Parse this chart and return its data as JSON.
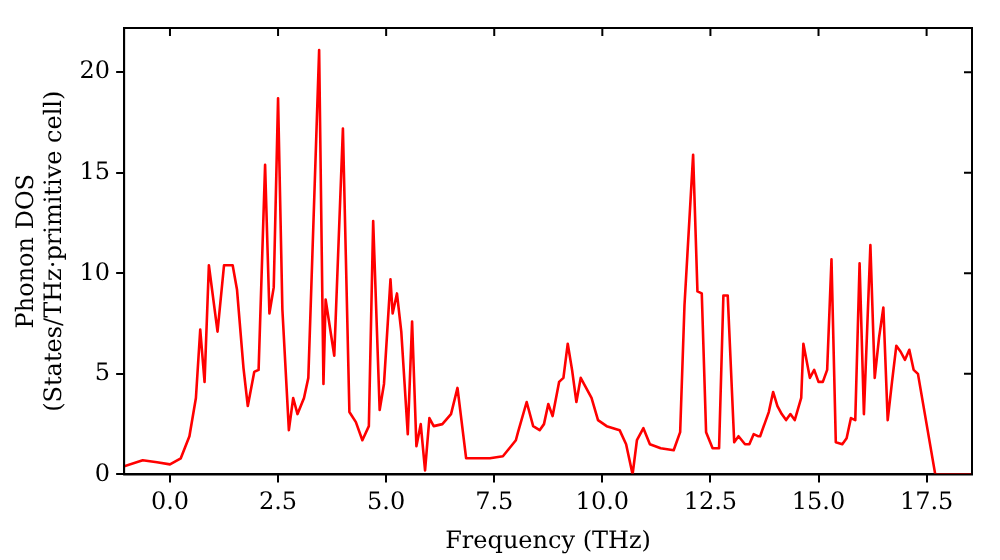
{
  "chart_data": {
    "type": "line",
    "xlabel": "Frequency (THz)",
    "ylabel": "Phonon DOS\n(States/THz·primitive cell)",
    "xlim": [
      -1.06,
      18.55
    ],
    "ylim": [
      0,
      22.2
    ],
    "xticks": [
      {
        "value": 0,
        "label": "0.0"
      },
      {
        "value": 2.5,
        "label": "2.5"
      },
      {
        "value": 5,
        "label": "5.0"
      },
      {
        "value": 7.5,
        "label": "7.5"
      },
      {
        "value": 10,
        "label": "10.0"
      },
      {
        "value": 12.5,
        "label": "12.5"
      },
      {
        "value": 15,
        "label": "15.0"
      },
      {
        "value": 17.5,
        "label": "17.5"
      }
    ],
    "yticks": [
      0,
      5,
      10,
      15,
      20
    ],
    "grid": false,
    "legend": false,
    "marker": "none",
    "line_style": "solid",
    "series": [
      {
        "color": "#ff0000",
        "x": [
          -1.06,
          -0.63,
          -0.3,
          0,
          0.25,
          0.45,
          0.6,
          0.7,
          0.8,
          0.9,
          1.1,
          1.25,
          1.45,
          1.55,
          1.7,
          1.8,
          1.95,
          2.05,
          2.2,
          2.3,
          2.4,
          2.5,
          2.6,
          2.75,
          2.85,
          2.95,
          3.1,
          3.2,
          3.45,
          3.55,
          3.6,
          3.8,
          4.0,
          4.15,
          4.3,
          4.45,
          4.6,
          4.7,
          4.85,
          4.95,
          5.1,
          5.15,
          5.25,
          5.35,
          5.5,
          5.6,
          5.7,
          5.8,
          5.9,
          6.0,
          6.1,
          6.3,
          6.5,
          6.65,
          6.85,
          7.4,
          7.7,
          8.0,
          8.05,
          8.25,
          8.4,
          8.55,
          8.65,
          8.75,
          8.85,
          9.0,
          9.1,
          9.2,
          9.3,
          9.4,
          9.5,
          9.6,
          9.75,
          9.9,
          10.1,
          10.4,
          10.55,
          10.7,
          10.8,
          10.95,
          11.1,
          11.35,
          11.65,
          11.8,
          11.9,
          12.1,
          12.2,
          12.3,
          12.4,
          12.55,
          12.7,
          12.8,
          12.9,
          13.05,
          13.15,
          13.3,
          13.4,
          13.5,
          13.6,
          13.65,
          13.85,
          13.95,
          14.05,
          14.15,
          14.25,
          14.35,
          14.45,
          14.6,
          14.65,
          14.8,
          14.9,
          15.0,
          15.1,
          15.2,
          15.3,
          15.4,
          15.55,
          15.65,
          15.75,
          15.85,
          15.95,
          16.05,
          16.2,
          16.3,
          16.4,
          16.5,
          16.6,
          16.7,
          16.8,
          16.9,
          17.0,
          17.1,
          17.2,
          17.3,
          17.7,
          18.55
        ],
        "values": [
          0.4,
          0.7,
          0.6,
          0.5,
          0.8,
          1.9,
          3.8,
          7.2,
          4.6,
          10.4,
          7.1,
          10.4,
          10.4,
          9.2,
          5.3,
          3.4,
          5.1,
          5.2,
          15.4,
          8.0,
          9.3,
          18.7,
          8.2,
          2.2,
          3.8,
          3.0,
          3.8,
          4.8,
          21.1,
          4.5,
          8.7,
          5.9,
          17.2,
          3.1,
          2.6,
          1.7,
          2.4,
          12.6,
          3.2,
          4.5,
          9.7,
          8.0,
          9.0,
          7.1,
          2.0,
          7.6,
          1.4,
          2.5,
          0.2,
          2.8,
          2.4,
          2.5,
          3.0,
          4.3,
          0.8,
          0.8,
          0.9,
          1.7,
          2.1,
          3.6,
          2.4,
          2.2,
          2.5,
          3.5,
          2.9,
          4.6,
          4.8,
          6.5,
          5.2,
          3.6,
          4.8,
          4.4,
          3.8,
          2.7,
          2.4,
          2.2,
          1.5,
          0.0,
          1.7,
          2.3,
          1.5,
          1.3,
          1.2,
          2.1,
          8.4,
          15.9,
          9.1,
          9.0,
          2.1,
          1.3,
          1.3,
          8.9,
          8.9,
          1.6,
          1.9,
          1.5,
          1.5,
          2.0,
          1.9,
          1.9,
          3.1,
          4.1,
          3.4,
          3.0,
          2.7,
          3.0,
          2.7,
          3.8,
          6.5,
          4.8,
          5.2,
          4.6,
          4.6,
          5.2,
          10.7,
          1.6,
          1.5,
          1.8,
          2.8,
          2.7,
          10.5,
          3.0,
          11.4,
          4.8,
          6.8,
          8.3,
          2.7,
          4.6,
          6.4,
          6.1,
          5.7,
          6.2,
          5.2,
          5.0,
          0,
          0
        ]
      }
    ]
  }
}
